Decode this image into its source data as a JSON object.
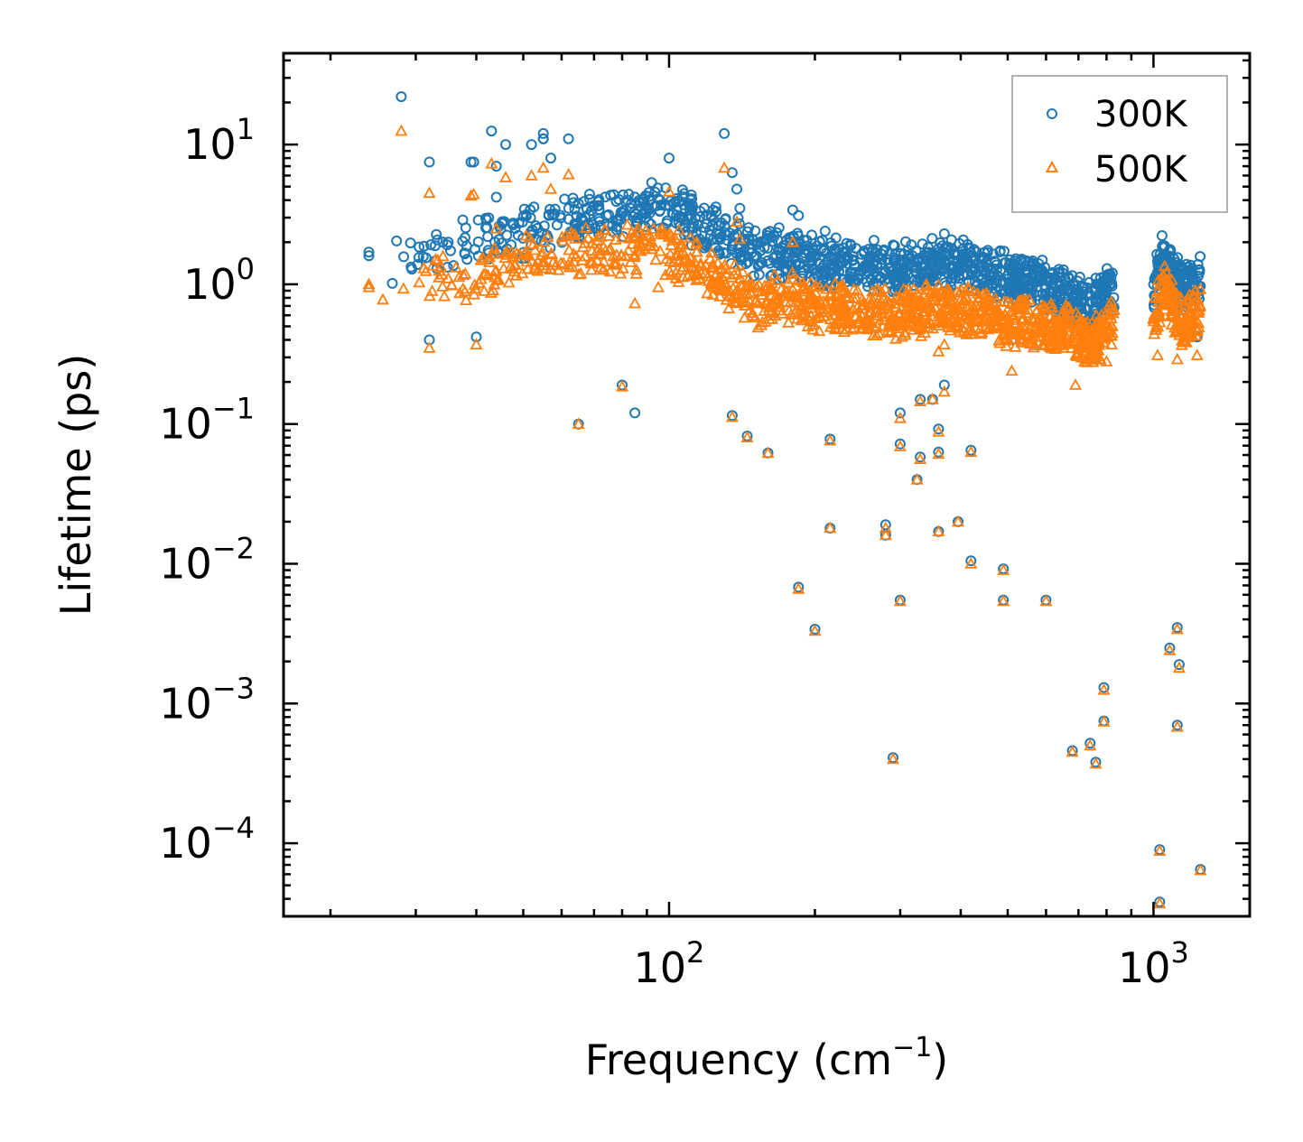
{
  "chart_data": {
    "type": "scatter",
    "xscale": "log",
    "yscale": "log",
    "xlabel": "Frequency (cm",
    "xlabel_sup": "−1",
    "xlabel_end": ")",
    "ylabel": "Lifetime (ps)",
    "xlim": [
      16,
      1580
    ],
    "ylim": [
      3e-05,
      45
    ],
    "x_ticks": [
      {
        "value": 100,
        "base": "10",
        "exp": "2"
      },
      {
        "value": 1000,
        "base": "10",
        "exp": "3"
      }
    ],
    "y_ticks": [
      {
        "value": 10,
        "base": "10",
        "exp": "1"
      },
      {
        "value": 1,
        "base": "10",
        "exp": "0"
      },
      {
        "value": 0.1,
        "base": "10",
        "exp": "−1"
      },
      {
        "value": 0.01,
        "base": "10",
        "exp": "−2"
      },
      {
        "value": 0.001,
        "base": "10",
        "exp": "−3"
      },
      {
        "value": 0.0001,
        "base": "10",
        "exp": "−4"
      }
    ],
    "legend_position": "top-right",
    "series": [
      {
        "name": "300K",
        "marker": "circle",
        "color": "#1f77b4",
        "band": [
          [
            25,
            1.5
          ],
          [
            40,
            2.0
          ],
          [
            50,
            2.3
          ],
          [
            60,
            2.9
          ],
          [
            70,
            3.1
          ],
          [
            80,
            3.2
          ],
          [
            90,
            3.5
          ],
          [
            100,
            3.3
          ],
          [
            110,
            3.0
          ],
          [
            130,
            2.2
          ],
          [
            150,
            1.7
          ],
          [
            175,
            1.6
          ],
          [
            200,
            1.5
          ],
          [
            250,
            1.4
          ],
          [
            300,
            1.3
          ],
          [
            350,
            1.4
          ],
          [
            400,
            1.4
          ],
          [
            500,
            1.1
          ],
          [
            600,
            1.0
          ],
          [
            700,
            0.75
          ],
          [
            750,
            0.68
          ],
          [
            780,
            0.8
          ],
          [
            820,
            0.95
          ],
          [
            1000,
            0.9
          ],
          [
            1050,
            1.6
          ],
          [
            1100,
            1.2
          ],
          [
            1150,
            0.9
          ],
          [
            1250,
            1.1
          ]
        ],
        "scatter": [
          [
            24,
            1.6
          ],
          [
            24,
            1.7
          ],
          [
            28,
            22
          ],
          [
            32,
            7.5
          ],
          [
            32,
            0.4
          ],
          [
            35,
            2.0
          ],
          [
            39,
            7.5
          ],
          [
            39.5,
            7.5
          ],
          [
            40,
            0.42
          ],
          [
            43,
            12.5
          ],
          [
            44,
            4.2
          ],
          [
            44,
            7.0
          ],
          [
            46,
            10
          ],
          [
            52,
            10
          ],
          [
            55,
            11
          ],
          [
            55,
            12
          ],
          [
            55,
            11
          ],
          [
            62,
            11
          ],
          [
            57,
            8
          ],
          [
            100,
            8
          ],
          [
            130,
            12
          ],
          [
            135,
            6.3
          ],
          [
            138,
            4.8
          ],
          [
            140,
            3.5
          ],
          [
            180,
            3.4
          ],
          [
            185,
            3.1
          ],
          [
            210,
            2.4
          ],
          [
            370,
            2.3
          ],
          [
            80,
            0.19
          ],
          [
            85,
            0.12
          ],
          [
            65,
            0.1
          ],
          [
            135,
            0.115
          ],
          [
            145,
            0.082
          ],
          [
            160,
            0.062
          ],
          [
            215,
            0.078
          ],
          [
            300,
            0.12
          ],
          [
            300,
            0.072
          ],
          [
            330,
            0.15
          ],
          [
            330,
            0.058
          ],
          [
            350,
            0.15
          ],
          [
            360,
            0.092
          ],
          [
            360,
            0.063
          ],
          [
            370,
            0.19
          ],
          [
            420,
            0.065
          ],
          [
            325,
            0.04
          ],
          [
            215,
            0.018
          ],
          [
            280,
            0.019
          ],
          [
            280,
            0.016
          ],
          [
            360,
            0.017
          ],
          [
            395,
            0.02
          ],
          [
            185,
            0.0068
          ],
          [
            200,
            0.0034
          ],
          [
            300,
            0.0055
          ],
          [
            420,
            0.0105
          ],
          [
            490,
            0.0092
          ],
          [
            490,
            0.0055
          ],
          [
            600,
            0.0055
          ],
          [
            290,
            0.00041
          ],
          [
            680,
            0.00046
          ],
          [
            740,
            0.00052
          ],
          [
            760,
            0.00038
          ],
          [
            790,
            0.0013
          ],
          [
            790,
            0.00075
          ],
          [
            1080,
            0.0025
          ],
          [
            1120,
            0.0035
          ],
          [
            1130,
            0.0019
          ],
          [
            1120,
            0.0007
          ],
          [
            1030,
            9e-05
          ],
          [
            1030,
            3.8e-05
          ],
          [
            1250,
            6.5e-05
          ],
          [
            1230,
            0.42
          ],
          [
            510,
            0.4
          ]
        ]
      },
      {
        "name": "500K",
        "marker": "triangle",
        "color": "#ff7f0e",
        "band": [
          [
            25,
            0.95
          ],
          [
            40,
            1.2
          ],
          [
            50,
            1.4
          ],
          [
            60,
            1.6
          ],
          [
            70,
            1.7
          ],
          [
            80,
            1.8
          ],
          [
            90,
            1.9
          ],
          [
            100,
            1.7
          ],
          [
            110,
            1.5
          ],
          [
            130,
            1.1
          ],
          [
            150,
            0.75
          ],
          [
            175,
            0.8
          ],
          [
            200,
            0.7
          ],
          [
            250,
            0.65
          ],
          [
            300,
            0.6
          ],
          [
            350,
            0.7
          ],
          [
            400,
            0.65
          ],
          [
            500,
            0.55
          ],
          [
            600,
            0.5
          ],
          [
            700,
            0.43
          ],
          [
            750,
            0.38
          ],
          [
            800,
            0.5
          ],
          [
            820,
            0.55
          ],
          [
            1000,
            0.5
          ],
          [
            1050,
            1.0
          ],
          [
            1100,
            0.7
          ],
          [
            1150,
            0.5
          ],
          [
            1250,
            0.7
          ]
        ],
        "scatter": [
          [
            24,
            0.95
          ],
          [
            24,
            1.0
          ],
          [
            28,
            12.5
          ],
          [
            32,
            4.5
          ],
          [
            32,
            0.35
          ],
          [
            35,
            1.1
          ],
          [
            39,
            4.3
          ],
          [
            39.5,
            4.4
          ],
          [
            40,
            0.37
          ],
          [
            43,
            7.3
          ],
          [
            44,
            2.5
          ],
          [
            46,
            5.8
          ],
          [
            52,
            6.0
          ],
          [
            55,
            6.8
          ],
          [
            62,
            6.1
          ],
          [
            57,
            4.8
          ],
          [
            100,
            4.6
          ],
          [
            130,
            6.8
          ],
          [
            138,
            2.8
          ],
          [
            140,
            2.1
          ],
          [
            180,
            2.0
          ],
          [
            85,
            0.73
          ],
          [
            95,
            0.95
          ],
          [
            80,
            0.185
          ],
          [
            65,
            0.1
          ],
          [
            135,
            0.112
          ],
          [
            145,
            0.08
          ],
          [
            160,
            0.062
          ],
          [
            215,
            0.076
          ],
          [
            300,
            0.11
          ],
          [
            300,
            0.069
          ],
          [
            330,
            0.145
          ],
          [
            330,
            0.056
          ],
          [
            350,
            0.15
          ],
          [
            360,
            0.088
          ],
          [
            360,
            0.061
          ],
          [
            370,
            0.17
          ],
          [
            420,
            0.063
          ],
          [
            325,
            0.04
          ],
          [
            215,
            0.018
          ],
          [
            280,
            0.018
          ],
          [
            280,
            0.016
          ],
          [
            360,
            0.017
          ],
          [
            395,
            0.02
          ],
          [
            185,
            0.0066
          ],
          [
            200,
            0.0033
          ],
          [
            300,
            0.0054
          ],
          [
            420,
            0.01
          ],
          [
            490,
            0.009
          ],
          [
            490,
            0.0054
          ],
          [
            600,
            0.0054
          ],
          [
            290,
            0.0004
          ],
          [
            680,
            0.00045
          ],
          [
            740,
            0.0005
          ],
          [
            760,
            0.00037
          ],
          [
            790,
            0.00125
          ],
          [
            790,
            0.00074
          ],
          [
            1080,
            0.0024
          ],
          [
            1120,
            0.0034
          ],
          [
            1130,
            0.0018
          ],
          [
            1120,
            0.00068
          ],
          [
            1030,
            8.8e-05
          ],
          [
            1030,
            3.7e-05
          ],
          [
            1250,
            6.4e-05
          ],
          [
            1230,
            0.31
          ],
          [
            1120,
            0.29
          ],
          [
            1020,
            0.31
          ],
          [
            800,
            0.28
          ],
          [
            690,
            0.19
          ],
          [
            510,
            0.24
          ],
          [
            370,
            0.37
          ],
          [
            360,
            0.33
          ]
        ]
      }
    ]
  }
}
